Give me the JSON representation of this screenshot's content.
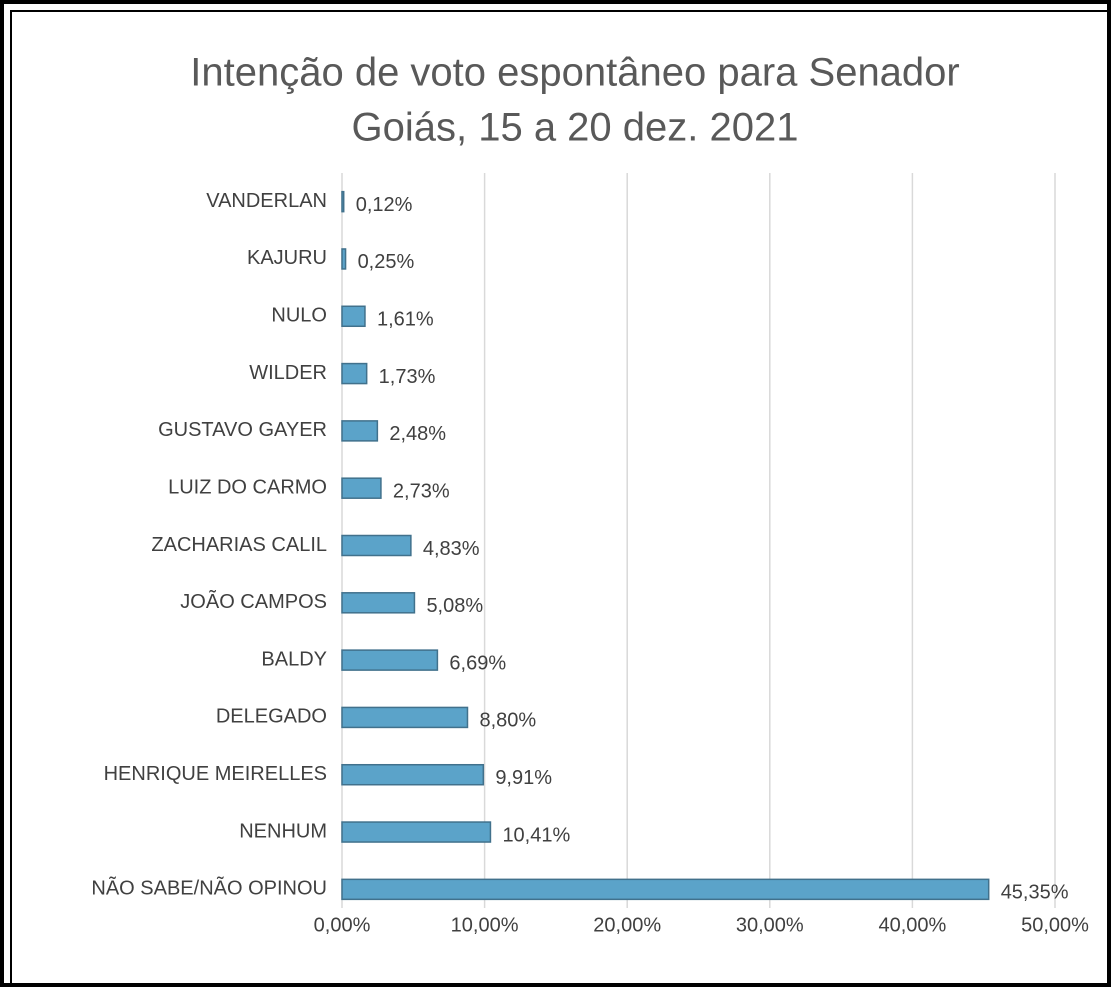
{
  "chart_data": {
    "type": "bar",
    "orientation": "horizontal",
    "title": "Intenção de voto espontâneo para Senador",
    "subtitle": "Goiás, 15 a 20 dez. 2021",
    "categories": [
      "VANDERLAN",
      "KAJURU",
      "NULO",
      "WILDER",
      "GUSTAVO GAYER",
      "LUIZ DO CARMO",
      "ZACHARIAS  CALIL",
      "JOÃO CAMPOS",
      "BALDY",
      "DELEGADO",
      "HENRIQUE MEIRELLES",
      "NENHUM",
      "NÃO SABE/NÃO OPINOU"
    ],
    "values": [
      0.12,
      0.25,
      1.61,
      1.73,
      2.48,
      2.73,
      4.83,
      5.08,
      6.69,
      8.8,
      9.91,
      10.41,
      45.35
    ],
    "value_labels": [
      "0,12%",
      "0,25%",
      "1,61%",
      "1,73%",
      "2,48%",
      "2,73%",
      "4,83%",
      "5,08%",
      "6,69%",
      "8,80%",
      "9,91%",
      "10,41%",
      "45,35%"
    ],
    "color": "#5ba3c9",
    "xlim": [
      0,
      50
    ],
    "xticks": [
      {
        "value": 0,
        "label": "0,00%"
      },
      {
        "value": 10,
        "label": "10,00%"
      },
      {
        "value": 20,
        "label": "20,00%"
      },
      {
        "value": 30,
        "label": "30,00%"
      },
      {
        "value": 40,
        "label": "40,00%"
      },
      {
        "value": 50,
        "label": "50,00%"
      }
    ],
    "grid": true
  }
}
